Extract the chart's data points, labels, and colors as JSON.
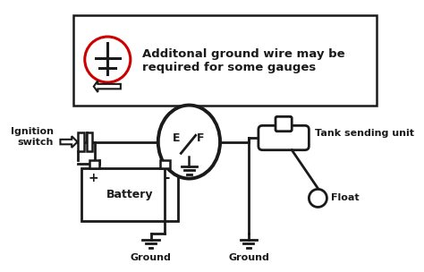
{
  "line_color": "#1a1a1a",
  "red_color": "#cc0000",
  "note_text_line1": "Additonal ground wire may be",
  "note_text_line2": "required for some gauges",
  "label_ignition": "Ignition\nswitch",
  "label_battery": "Battery",
  "label_plus": "+",
  "label_minus": "-",
  "label_ground1": "Ground",
  "label_ground2": "Ground",
  "label_tank": "Tank sending unit",
  "label_float": "Float",
  "label_E": "E",
  "label_F": "F"
}
